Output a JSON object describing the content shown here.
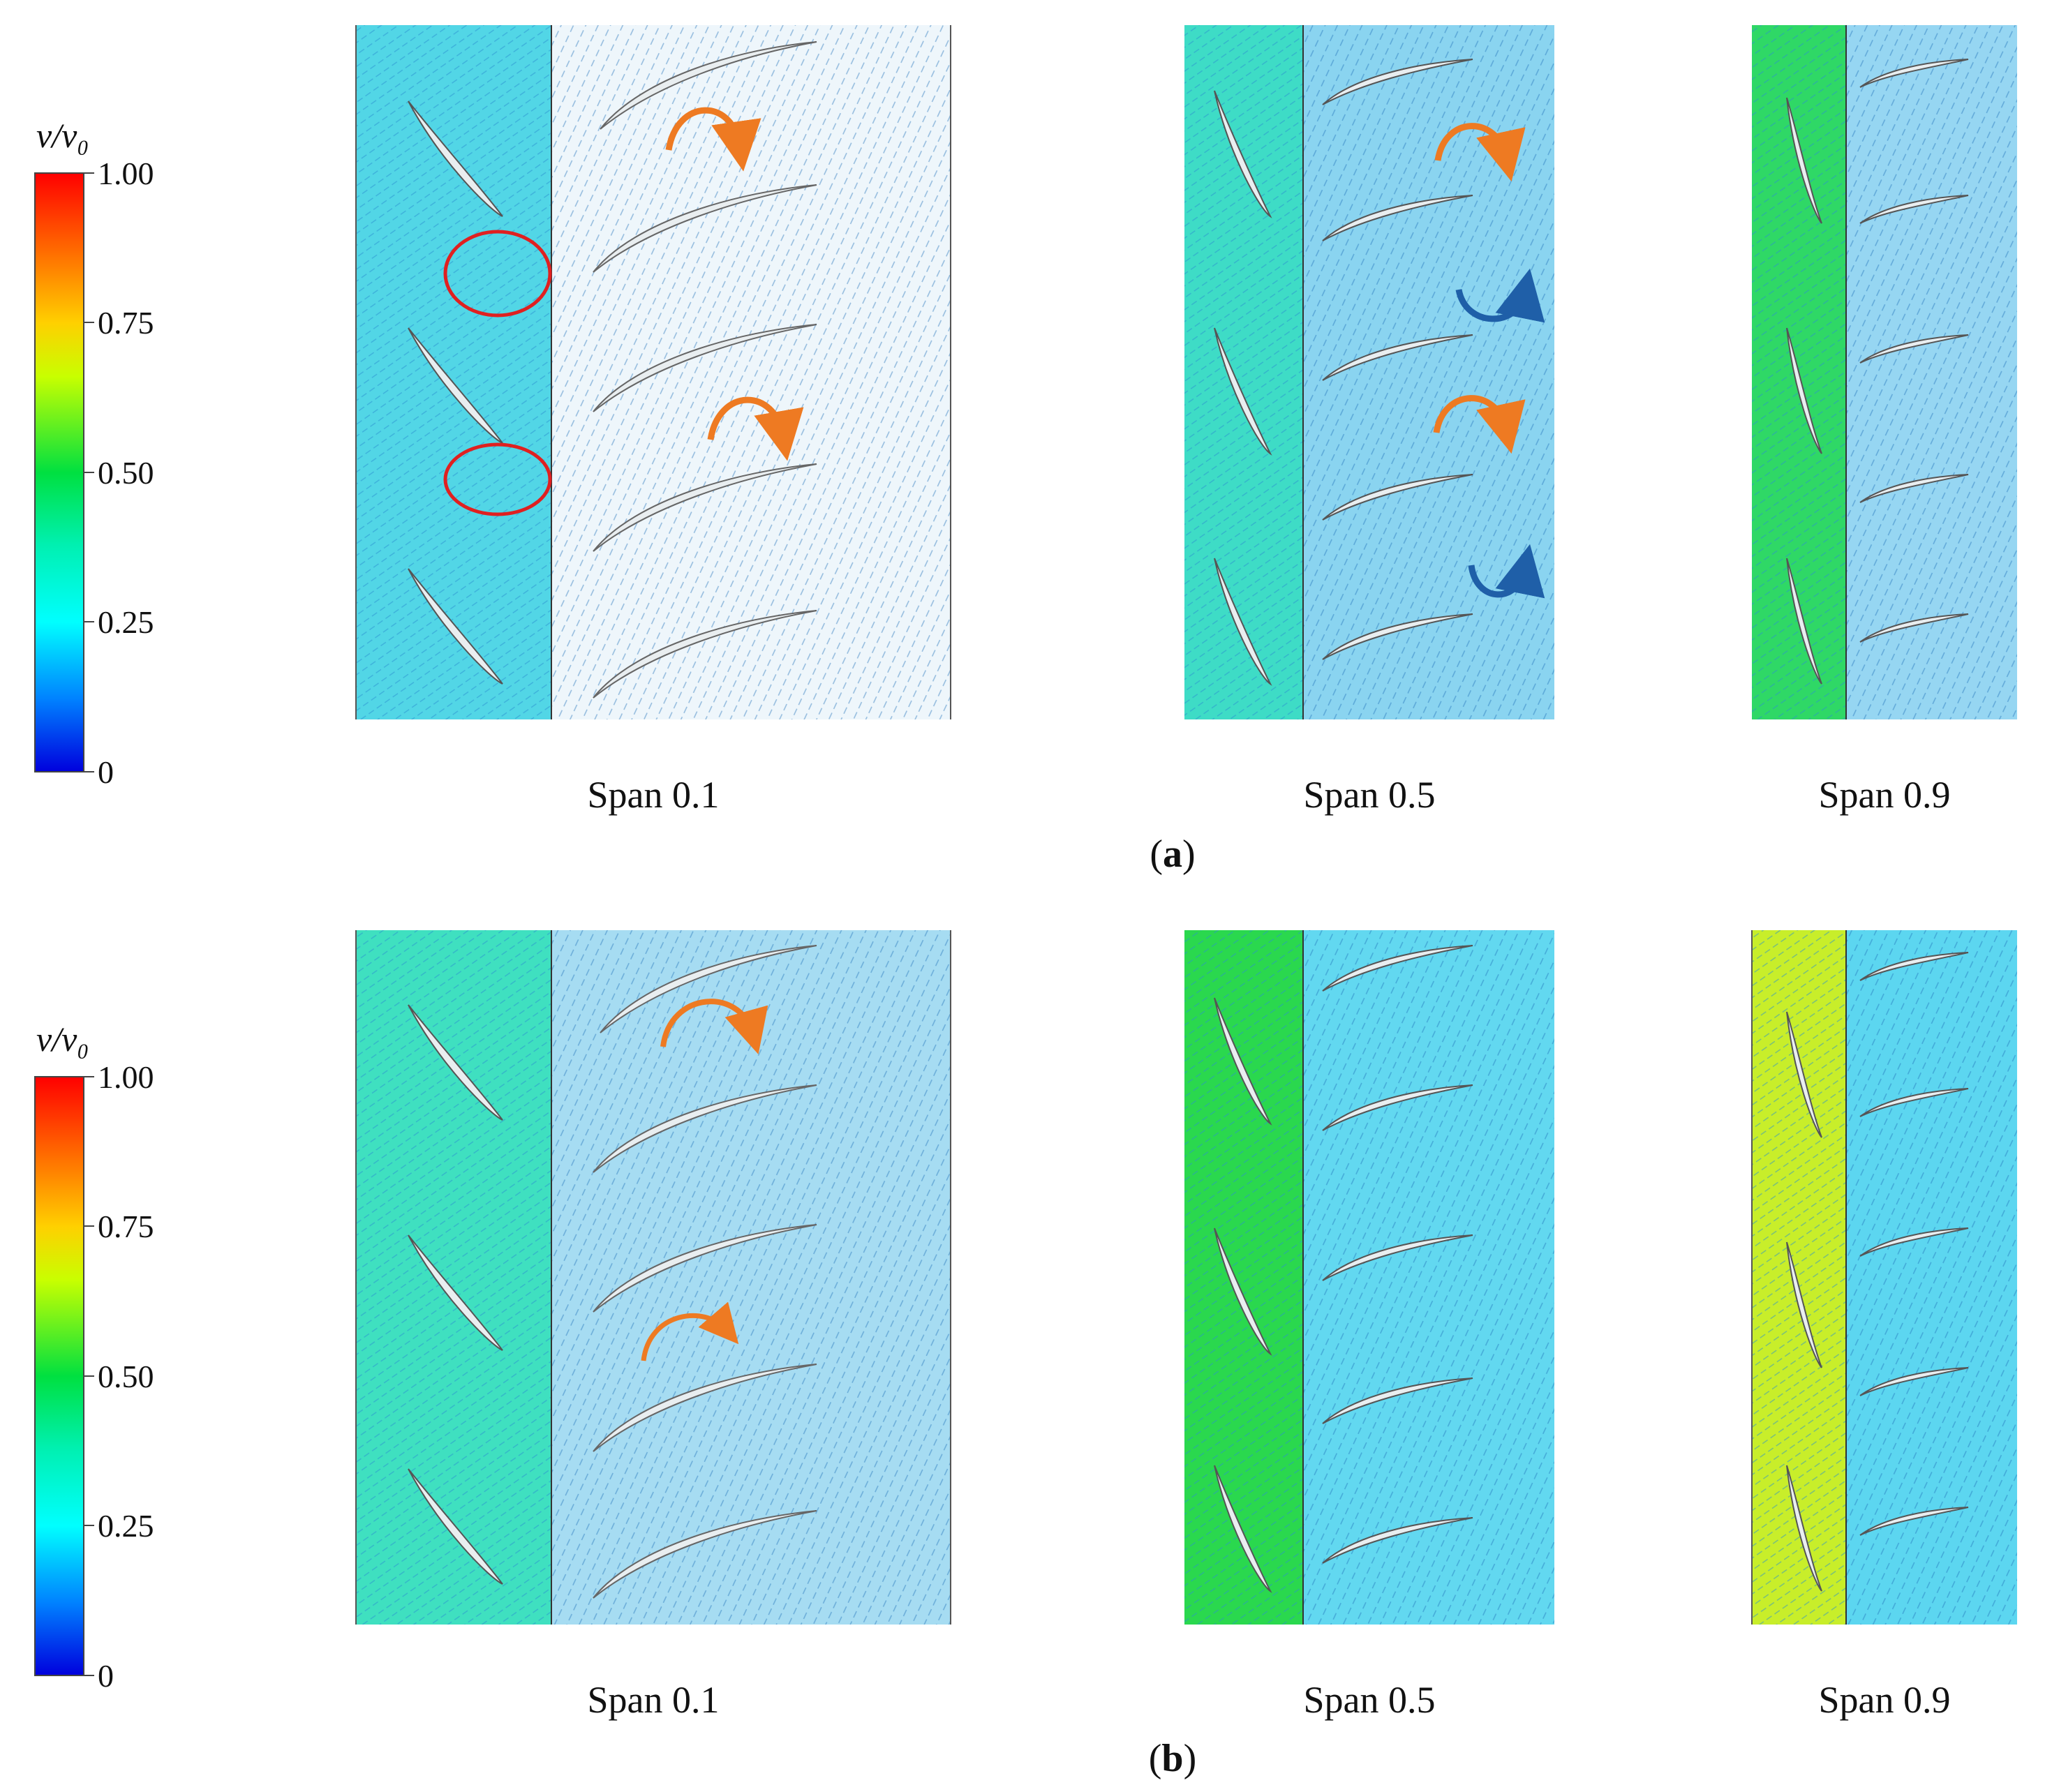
{
  "figure": {
    "colorbar": {
      "title": "v/v₀",
      "ticks": [
        "1.00",
        "0.75",
        "0.50",
        "0.25",
        "0"
      ],
      "colors": [
        "#ff0000",
        "#ff8c00",
        "#ffff00",
        "#00e000",
        "#00ffff",
        "#0050ff",
        "#0000dd"
      ]
    },
    "rows": [
      {
        "label": "(a)",
        "label_letter": "a",
        "panels": [
          {
            "caption": "Span 0.1",
            "left_color": "#4fd8e8",
            "right_color": "#f2f8fc",
            "vortices": [
              "orange",
              "orange"
            ],
            "circles": 2
          },
          {
            "caption": "Span 0.5",
            "left_color": "#3fdcc8",
            "right_color": "#8cd6f0",
            "vortices": [
              "orange",
              "blue",
              "orange",
              "blue"
            ],
            "circles": 0
          },
          {
            "caption": "Span 0.9",
            "left_color": "#2fd866",
            "right_color": "#9ad8f2",
            "vortices": [],
            "circles": 0
          }
        ]
      },
      {
        "label": "(b)",
        "label_letter": "b",
        "panels": [
          {
            "caption": "Span 0.1",
            "left_color": "#3fe0c0",
            "right_color": "#a6dcf2",
            "vortices": [
              "orange",
              "orange"
            ],
            "circles": 0
          },
          {
            "caption": "Span 0.5",
            "left_color": "#28d84a",
            "right_color": "#62d8f0",
            "vortices": [],
            "circles": 0
          },
          {
            "caption": "Span 0.9",
            "left_color": "#c8ee2a",
            "right_color": "#5cd6f0",
            "vortices": [],
            "circles": 0
          }
        ]
      }
    ]
  }
}
